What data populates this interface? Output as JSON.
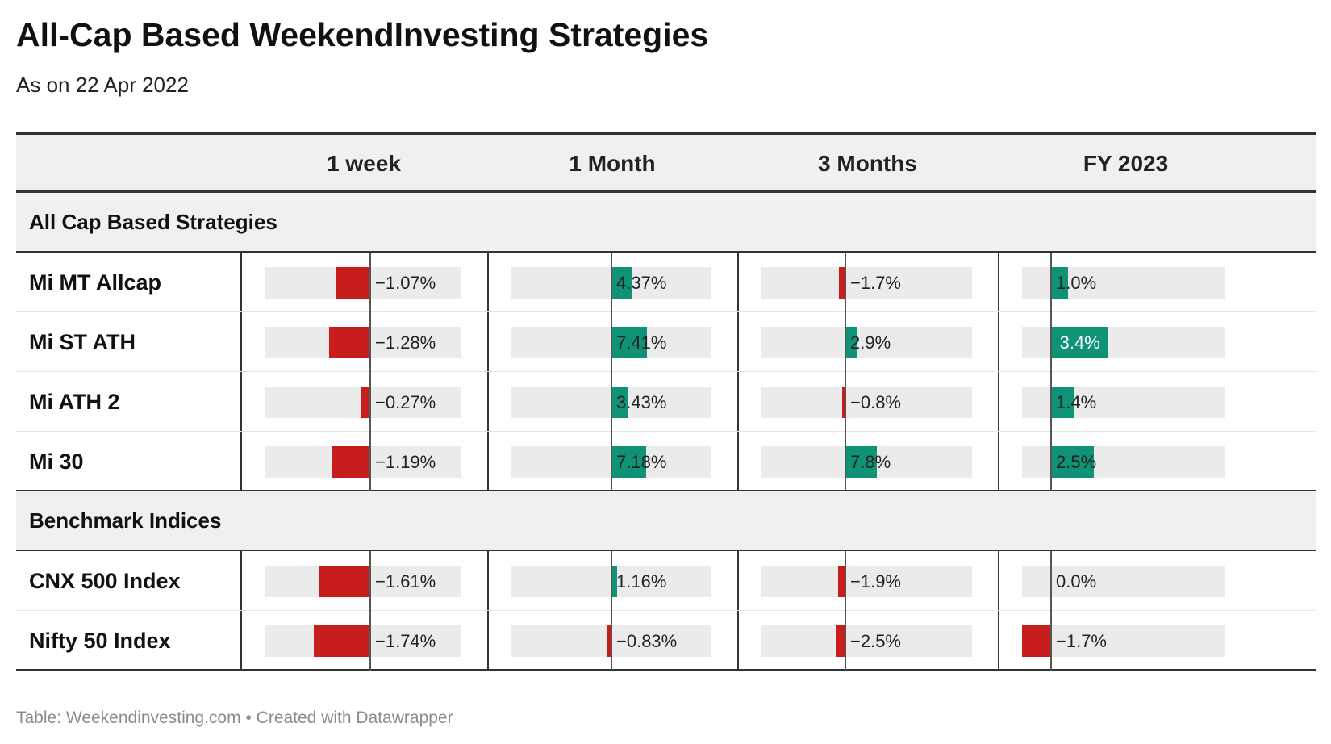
{
  "title": "All-Cap Based WeekendInvesting Strategies",
  "subtitle": "As on 22 Apr 2022",
  "footer": {
    "source": "Table: Weekendinvesting.com",
    "separator": "•",
    "credit": "Created with Datawrapper"
  },
  "colors": {
    "negative": "#c71e1d",
    "positive": "#0f9275",
    "bar_background": "#ebebeb",
    "header_background": "#f0f0f0"
  },
  "chart_data": {
    "type": "table",
    "columns": [
      "1 week",
      "1 Month",
      "3 Months",
      "FY 2023"
    ],
    "groups": [
      {
        "name": "All Cap Based Strategies",
        "rows": [
          {
            "label": "Mi MT Allcap",
            "values": [
              -1.07,
              4.37,
              -1.7,
              1.0
            ],
            "labels": [
              "−1.07%",
              "4.37%",
              "−1.7%",
              "1.0%"
            ]
          },
          {
            "label": "Mi ST ATH",
            "values": [
              -1.28,
              7.41,
              2.9,
              3.4
            ],
            "labels": [
              "−1.28%",
              "7.41%",
              "2.9%",
              "3.4%"
            ]
          },
          {
            "label": "Mi ATH 2",
            "values": [
              -0.27,
              3.43,
              -0.8,
              1.4
            ],
            "labels": [
              "−0.27%",
              "3.43%",
              "−0.8%",
              "1.4%"
            ]
          },
          {
            "label": "Mi 30",
            "values": [
              -1.19,
              7.18,
              7.8,
              2.5
            ],
            "labels": [
              "−1.19%",
              "7.18%",
              "7.8%",
              "2.5%"
            ]
          }
        ]
      },
      {
        "name": "Benchmark Indices",
        "rows": [
          {
            "label": "CNX 500 Index",
            "values": [
              -1.61,
              1.16,
              -1.9,
              0.0
            ],
            "labels": [
              "−1.61%",
              "1.16%",
              "−1.9%",
              "0.0%"
            ]
          },
          {
            "label": "Nifty 50 Index",
            "values": [
              -1.74,
              -0.83,
              -2.5,
              -1.7
            ],
            "labels": [
              "−1.74%",
              "−0.83%",
              "−2.5%",
              "−1.7%"
            ]
          }
        ]
      }
    ]
  }
}
